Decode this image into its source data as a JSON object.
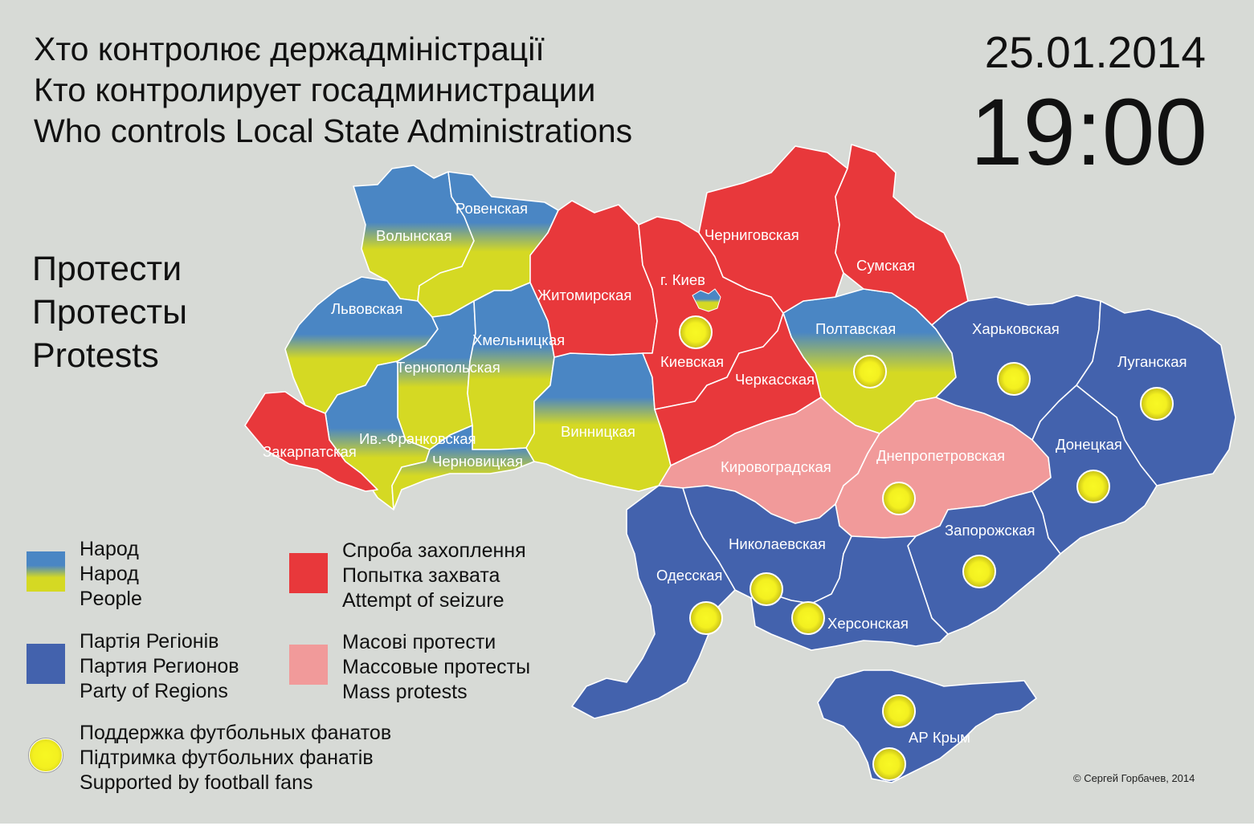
{
  "title": {
    "uk": "Хто контролює держадміністрації",
    "ru": "Кто контролирует  госадминистрации",
    "en": "Who controls Local State Administrations"
  },
  "date": "25.01.2014",
  "time": "19:00",
  "protests_label": {
    "uk": "Протести",
    "ru": "Протесты",
    "en": "Protests"
  },
  "colors": {
    "people_top": "#4a86c4",
    "people_bottom": "#d5d923",
    "party_of_regions": "#4362ad",
    "attempt_of_seizure": "#e8383b",
    "mass_protests": "#f19a9a",
    "football_fans": "#f4f020",
    "background": "#d7dad6"
  },
  "legend": {
    "people": {
      "uk": "Народ",
      "ru": "Народ",
      "en": "People"
    },
    "party": {
      "uk": "Партія Регіонів",
      "ru": "Партия Регионов",
      "en": "Party of Regions"
    },
    "seizure": {
      "uk": "Спроба захоплення",
      "ru": "Попытка захвата",
      "en": "Attempt of seizure"
    },
    "mass": {
      "uk": "Масові протести",
      "ru": "Массовые протесты",
      "en": "Mass protests"
    },
    "fans": {
      "ru": "Поддержка футбольных фанатов",
      "uk": "Підтримка футбольних фанатів",
      "en": "Supported by football fans"
    }
  },
  "regions": {
    "volyn": "Волынская",
    "rivne": "Ровенская",
    "lviv": "Львовская",
    "khmelnytskyi": "Хмельницкая",
    "ternopil": "Тернопольская",
    "ivano_frankivsk": "Ив.-Франковская",
    "zakarpattia": "Закарпатская",
    "chernivtsi": "Черновицкая",
    "vinnytsia": "Винницкая",
    "zhytomyr": "Житомирская",
    "kyiv_city": "г. Киев",
    "kyiv": "Киевская",
    "chernihiv": "Черниговская",
    "sumy": "Сумская",
    "poltava": "Полтавская",
    "cherkasy": "Черкасская",
    "kirovohrad": "Кировоградская",
    "dnipropetrovsk": "Днепропетровская",
    "kharkiv": "Харьковская",
    "luhansk": "Луганская",
    "donetsk": "Донецкая",
    "zaporizhzhia": "Запорожская",
    "mykolaiv": "Николаевская",
    "odesa": "Одесская",
    "kherson": "Херсонская",
    "crimea": "АР Крым"
  },
  "copyright": "© Сергей Горбачев, 2014"
}
